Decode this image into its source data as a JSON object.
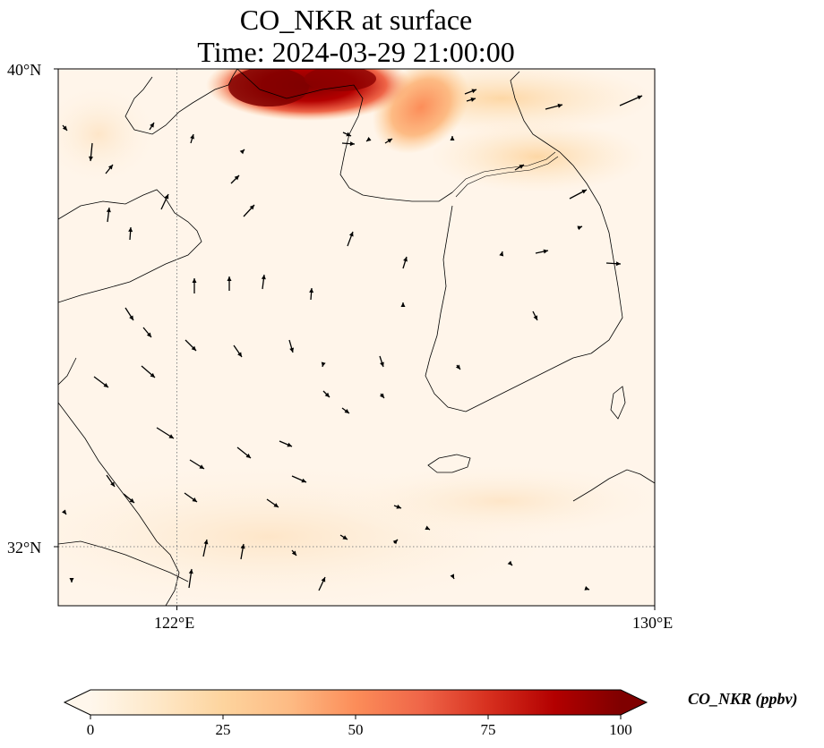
{
  "title": {
    "line1": "CO_NKR at surface",
    "line2": "Time: 2024-03-29 21:00:00"
  },
  "axes": {
    "lat_labels": [
      "40°N",
      "32°N"
    ],
    "lon_labels": [
      "122°E",
      "130°E"
    ],
    "lat_range": [
      31,
      40
    ],
    "lon_range": [
      120,
      130
    ],
    "gridlines": "dotted at 122°E and 32°N"
  },
  "colorbar": {
    "label": "CO_NKR (ppbv)",
    "ticks": [
      "0",
      "25",
      "50",
      "75",
      "100"
    ],
    "range": [
      0,
      100
    ],
    "extend": "both",
    "colormap": "OrRd",
    "colors": [
      "#fff7ec",
      "#fee8c8",
      "#fdd49e",
      "#fdbb84",
      "#fc8d59",
      "#ef6548",
      "#d7301f",
      "#b30000",
      "#7f0000"
    ]
  },
  "field": {
    "description_units": "ppbv",
    "hotspots": [
      {
        "lon": 123.5,
        "lat": 39.85,
        "value": 95
      },
      {
        "lon": 124.2,
        "lat": 39.75,
        "value": 80
      },
      {
        "lon": 125.0,
        "lat": 39.4,
        "value": 40
      },
      {
        "lon": 126.2,
        "lat": 39.8,
        "value": 18
      },
      {
        "lon": 127.8,
        "lat": 38.6,
        "value": 15
      },
      {
        "lon": 124.8,
        "lat": 33.0,
        "value": 8
      }
    ]
  }
}
